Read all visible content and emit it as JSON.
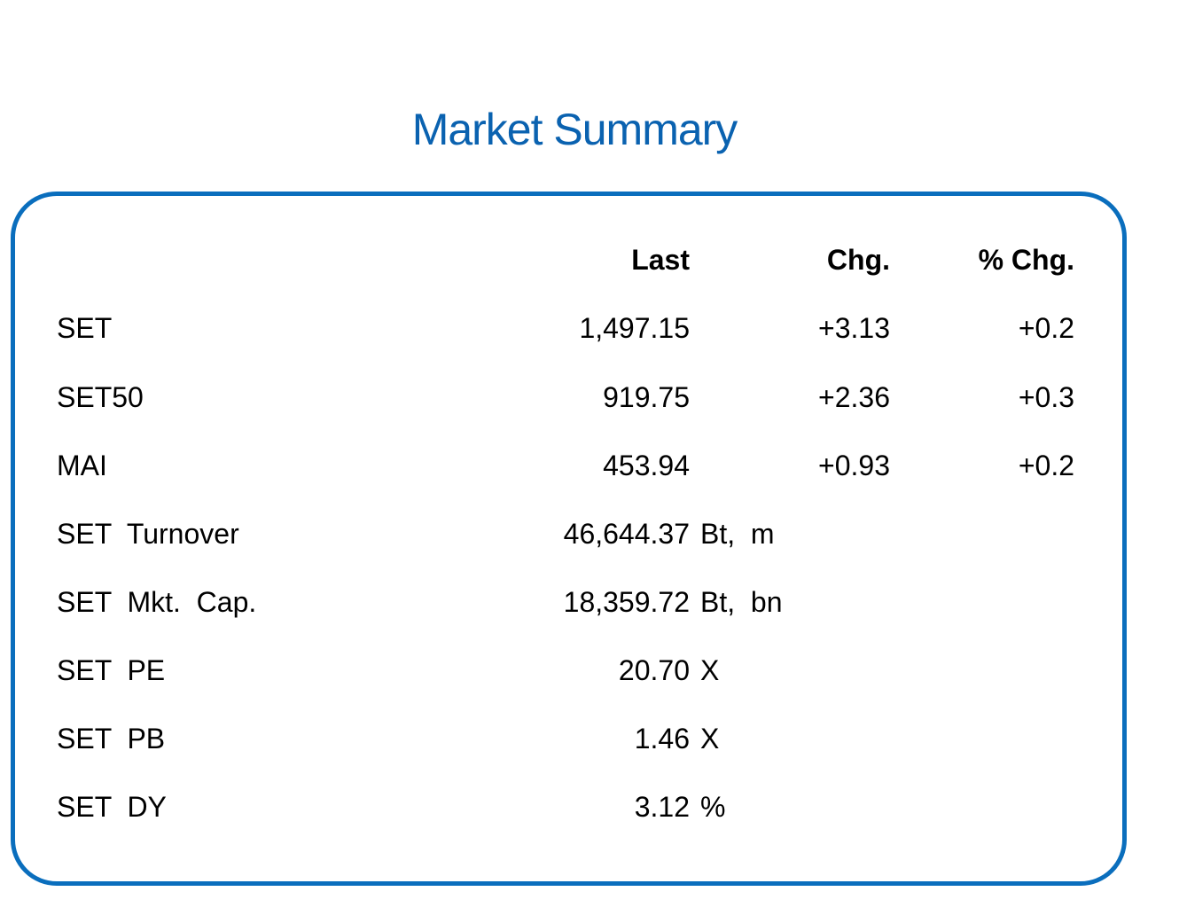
{
  "title": "Market Summary",
  "colors": {
    "title": "#0a62b0",
    "border": "#0a6ebd"
  },
  "header": {
    "last": "Last",
    "chg": "Chg.",
    "pct": "% Chg."
  },
  "indices": [
    {
      "label": "SET",
      "last": "1,497.15",
      "chg": "+3.13",
      "pct": "+0.2"
    },
    {
      "label": "SET50",
      "last": "919.75",
      "chg": "+2.36",
      "pct": "+0.3"
    },
    {
      "label": "MAI",
      "last": "453.94",
      "chg": "+0.93",
      "pct": "+0.2"
    }
  ],
  "stats": [
    {
      "label": "SET  Turnover",
      "value": "46,644.37",
      "unit": "Bt,  m"
    },
    {
      "label": "SET  Mkt.  Cap.",
      "value": "18,359.72",
      "unit": "Bt,  bn"
    },
    {
      "label": "SET  PE",
      "value": "20.70",
      "unit": "X"
    },
    {
      "label": "SET  PB",
      "value": "1.46",
      "unit": "X"
    },
    {
      "label": "SET  DY",
      "value": "3.12",
      "unit": "%"
    }
  ]
}
